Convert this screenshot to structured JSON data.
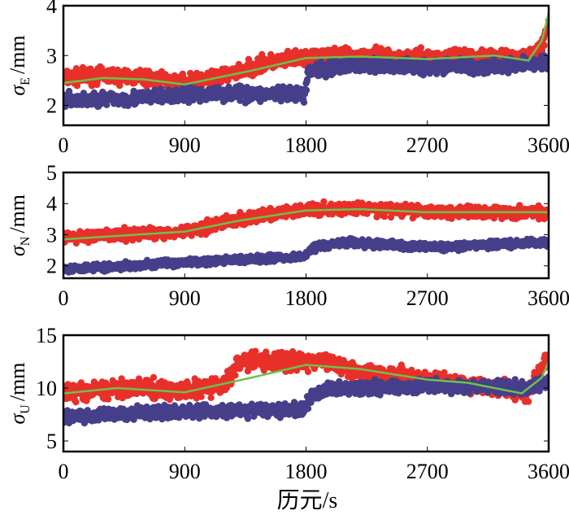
{
  "colors": {
    "red": "#e8302a",
    "blue": "#463f8a",
    "green": "#6cc24a"
  },
  "chart_data": [
    {
      "type": "scatter",
      "ylabel": "σ",
      "ylabel_sub": "E",
      "ylabel_unit": "/mm",
      "xlim": [
        0,
        3600
      ],
      "ylim": [
        1.6,
        4
      ],
      "xticks": [
        "0",
        "900",
        "1800",
        "2700",
        "3600"
      ],
      "yticks": [
        2,
        3,
        4
      ],
      "ytick_labels": [
        "2",
        "3",
        "4"
      ],
      "series": [
        {
          "color": "red",
          "noise": 0.13,
          "points": [
            [
              0,
              2.55
            ],
            [
              300,
              2.6
            ],
            [
              600,
              2.55
            ],
            [
              900,
              2.45
            ],
            [
              1200,
              2.6
            ],
            [
              1500,
              2.85
            ],
            [
              1800,
              2.95
            ],
            [
              2200,
              3.0
            ],
            [
              2700,
              2.95
            ],
            [
              3200,
              3.0
            ],
            [
              3450,
              2.9
            ],
            [
              3550,
              3.2
            ],
            [
              3600,
              3.6
            ]
          ]
        },
        {
          "color": "blue",
          "noise": 0.12,
          "points": [
            [
              0,
              2.1
            ],
            [
              600,
              2.15
            ],
            [
              1200,
              2.25
            ],
            [
              1790,
              2.2
            ],
            [
              1820,
              2.7
            ],
            [
              2100,
              2.8
            ],
            [
              2700,
              2.78
            ],
            [
              3300,
              2.8
            ],
            [
              3600,
              2.85
            ]
          ]
        }
      ],
      "trend": {
        "color": "green",
        "points": [
          [
            0,
            2.45
          ],
          [
            300,
            2.55
          ],
          [
            600,
            2.52
          ],
          [
            900,
            2.42
          ],
          [
            1400,
            2.7
          ],
          [
            1800,
            2.95
          ],
          [
            2200,
            2.98
          ],
          [
            2700,
            2.93
          ],
          [
            3200,
            3.0
          ],
          [
            3450,
            2.9
          ],
          [
            3550,
            3.3
          ],
          [
            3600,
            3.85
          ]
        ]
      }
    },
    {
      "type": "scatter",
      "ylabel": "σ",
      "ylabel_sub": "N",
      "ylabel_unit": "/mm",
      "xlim": [
        0,
        3600
      ],
      "ylim": [
        1.6,
        5
      ],
      "xticks": [
        "0",
        "900",
        "1800",
        "2700",
        "3600"
      ],
      "yticks": [
        2,
        3,
        4,
        5
      ],
      "ytick_labels": [
        "2",
        "3",
        "4",
        "5"
      ],
      "series": [
        {
          "color": "red",
          "noise": 0.16,
          "points": [
            [
              0,
              2.9
            ],
            [
              900,
              3.1
            ],
            [
              1300,
              3.5
            ],
            [
              1800,
              3.8
            ],
            [
              2200,
              3.85
            ],
            [
              2700,
              3.75
            ],
            [
              3600,
              3.7
            ]
          ]
        },
        {
          "color": "blue",
          "noise": 0.1,
          "points": [
            [
              0,
              1.9
            ],
            [
              900,
              2.1
            ],
            [
              1500,
              2.25
            ],
            [
              1790,
              2.3
            ],
            [
              1850,
              2.6
            ],
            [
              2100,
              2.75
            ],
            [
              2700,
              2.6
            ],
            [
              3600,
              2.75
            ]
          ]
        }
      ],
      "trend": {
        "color": "green",
        "points": [
          [
            0,
            2.85
          ],
          [
            900,
            3.1
          ],
          [
            1300,
            3.45
          ],
          [
            1800,
            3.78
          ],
          [
            2200,
            3.82
          ],
          [
            2700,
            3.72
          ],
          [
            3600,
            3.72
          ]
        ]
      }
    },
    {
      "type": "scatter",
      "ylabel": "σ",
      "ylabel_sub": "U",
      "ylabel_unit": "/mm",
      "xlim": [
        0,
        3600
      ],
      "ylim": [
        4,
        15
      ],
      "xticks": [
        "0",
        "900",
        "1800",
        "2700",
        "3600"
      ],
      "yticks": [
        5,
        10,
        15
      ],
      "ytick_labels": [
        "5",
        "10",
        "15"
      ],
      "xlabel": "历元/s",
      "series": [
        {
          "color": "red",
          "noise": 0.7,
          "points": [
            [
              0,
              9.5
            ],
            [
              500,
              10.0
            ],
            [
              900,
              9.7
            ],
            [
              1200,
              10.3
            ],
            [
              1300,
              12.5
            ],
            [
              2000,
              12.5
            ],
            [
              2200,
              11.5
            ],
            [
              2700,
              10.8
            ],
            [
              3300,
              10.0
            ],
            [
              3450,
              9.5
            ],
            [
              3550,
              12.0
            ],
            [
              3600,
              13.0
            ]
          ]
        },
        {
          "color": "blue",
          "noise": 0.5,
          "points": [
            [
              0,
              7.3
            ],
            [
              900,
              7.8
            ],
            [
              1790,
              8.0
            ],
            [
              1850,
              9.5
            ],
            [
              2000,
              10.0
            ],
            [
              2700,
              10.2
            ],
            [
              3400,
              10.0
            ],
            [
              3600,
              10.5
            ]
          ]
        }
      ],
      "trend": {
        "color": "green",
        "points": [
          [
            0,
            9.5
          ],
          [
            400,
            10.0
          ],
          [
            900,
            9.6
          ],
          [
            1400,
            11.0
          ],
          [
            1800,
            12.2
          ],
          [
            2200,
            11.8
          ],
          [
            2700,
            10.8
          ],
          [
            3000,
            10.5
          ],
          [
            3400,
            9.5
          ],
          [
            3550,
            11.0
          ],
          [
            3600,
            12.5
          ]
        ]
      }
    }
  ]
}
